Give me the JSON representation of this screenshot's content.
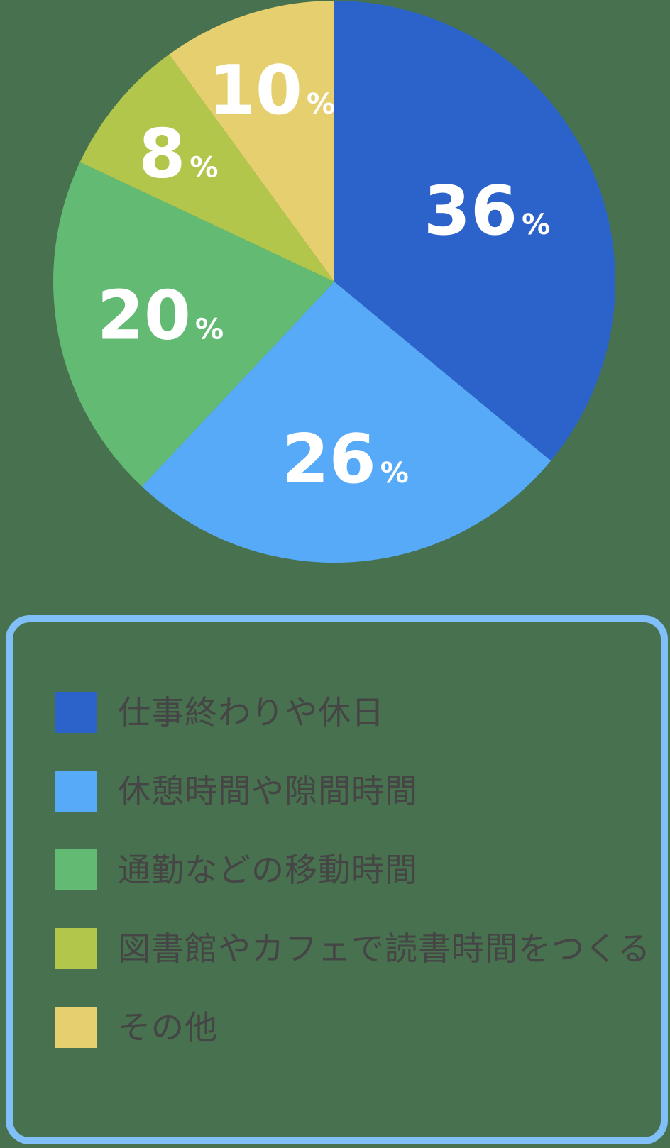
{
  "page": {
    "background_color": "#47714f"
  },
  "chart_data": {
    "type": "pie",
    "title": "",
    "unit": "%",
    "direction": "clockwise",
    "start_angle_deg": 0,
    "label_color": "#ffffff",
    "legend_position": "bottom",
    "legend_border_color": "#80bff7",
    "legend_text_color": "#454545",
    "slices": [
      {
        "label": "仕事終わりや休日",
        "value": 36,
        "color": "#2b63cb"
      },
      {
        "label": "休憩時間や隙間時間",
        "value": 26,
        "color": "#57aaf7"
      },
      {
        "label": "通勤などの移動時間",
        "value": 20,
        "color": "#63ba72"
      },
      {
        "label": "図書館やカフェで読書時間をつくる",
        "value": 8,
        "color": "#b2c64c"
      },
      {
        "label": "その他",
        "value": 10,
        "color": "#e5cf6e"
      }
    ]
  }
}
